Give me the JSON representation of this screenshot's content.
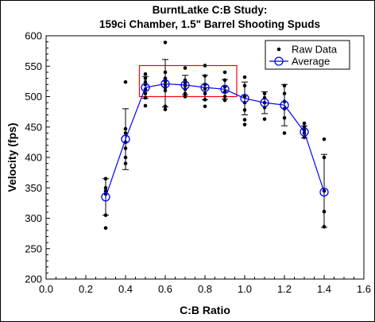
{
  "chart_data": {
    "type": "scatter",
    "title": "BurntLatke C:B Study:",
    "subtitle": "159ci Chamber, 1.5\" Barrel Shooting Spuds",
    "xlabel": "C:B Ratio",
    "ylabel": "Velocity (fps)",
    "xlim": [
      0.0,
      1.6
    ],
    "ylim": [
      200,
      600
    ],
    "x_ticks": [
      "0.0",
      "0.2",
      "0.4",
      "0.6",
      "0.8",
      "1.0",
      "1.2",
      "1.4",
      "1.6"
    ],
    "y_ticks": [
      "200",
      "250",
      "300",
      "350",
      "400",
      "450",
      "500",
      "550",
      "600"
    ],
    "grid": false,
    "legend_position": "top-right",
    "series": [
      {
        "name": "Raw Data",
        "color": "#000000",
        "marker": "dot",
        "points": [
          [
            0.3,
            365
          ],
          [
            0.3,
            350
          ],
          [
            0.3,
            345
          ],
          [
            0.3,
            340
          ],
          [
            0.3,
            305
          ],
          [
            0.3,
            284
          ],
          [
            0.4,
            524
          ],
          [
            0.4,
            447
          ],
          [
            0.4,
            440
          ],
          [
            0.4,
            425
          ],
          [
            0.4,
            415
          ],
          [
            0.4,
            400
          ],
          [
            0.4,
            390
          ],
          [
            0.5,
            537
          ],
          [
            0.5,
            530
          ],
          [
            0.5,
            524
          ],
          [
            0.5,
            520
          ],
          [
            0.5,
            512
          ],
          [
            0.5,
            505
          ],
          [
            0.5,
            498
          ],
          [
            0.5,
            485
          ],
          [
            0.6,
            589
          ],
          [
            0.6,
            540
          ],
          [
            0.6,
            530
          ],
          [
            0.6,
            525
          ],
          [
            0.6,
            520
          ],
          [
            0.6,
            515
          ],
          [
            0.6,
            510
          ],
          [
            0.6,
            484
          ],
          [
            0.6,
            479
          ],
          [
            0.7,
            547
          ],
          [
            0.7,
            527
          ],
          [
            0.7,
            522
          ],
          [
            0.7,
            518
          ],
          [
            0.7,
            512
          ],
          [
            0.7,
            505
          ],
          [
            0.7,
            500
          ],
          [
            0.8,
            551
          ],
          [
            0.8,
            534
          ],
          [
            0.8,
            520
          ],
          [
            0.8,
            513
          ],
          [
            0.8,
            505
          ],
          [
            0.8,
            495
          ],
          [
            0.8,
            484
          ],
          [
            0.9,
            540
          ],
          [
            0.9,
            527
          ],
          [
            0.9,
            516
          ],
          [
            0.9,
            508
          ],
          [
            0.9,
            500
          ],
          [
            0.9,
            494
          ],
          [
            1.0,
            532
          ],
          [
            1.0,
            518
          ],
          [
            1.0,
            500
          ],
          [
            1.0,
            490
          ],
          [
            1.0,
            478
          ],
          [
            1.0,
            462
          ],
          [
            1.0,
            454
          ],
          [
            1.1,
            505
          ],
          [
            1.1,
            498
          ],
          [
            1.1,
            490
          ],
          [
            1.1,
            482
          ],
          [
            1.1,
            463
          ],
          [
            1.2,
            518
          ],
          [
            1.2,
            505
          ],
          [
            1.2,
            492
          ],
          [
            1.2,
            480
          ],
          [
            1.2,
            465
          ],
          [
            1.2,
            440
          ],
          [
            1.3,
            456
          ],
          [
            1.3,
            450
          ],
          [
            1.3,
            445
          ],
          [
            1.3,
            440
          ],
          [
            1.3,
            433
          ],
          [
            1.4,
            430
          ],
          [
            1.4,
            400
          ],
          [
            1.4,
            345
          ],
          [
            1.4,
            311
          ],
          [
            1.4,
            286
          ]
        ]
      },
      {
        "name": "Average",
        "color": "#0000ff",
        "marker": "open-circle",
        "x": [
          0.3,
          0.4,
          0.5,
          0.6,
          0.7,
          0.8,
          0.9,
          1.0,
          1.1,
          1.2,
          1.3,
          1.4
        ],
        "y": [
          335,
          430,
          515,
          521,
          519,
          515,
          512,
          497,
          490,
          486,
          442,
          343
        ],
        "error_low": [
          305,
          380,
          497,
          483,
          503,
          495,
          496,
          470,
          472,
          452,
          432,
          285
        ],
        "error_high": [
          365,
          480,
          533,
          561,
          535,
          535,
          528,
          524,
          508,
          520,
          452,
          405
        ]
      }
    ],
    "annotations": [
      {
        "type": "rectangle",
        "color": "#ff0000",
        "x_range": [
          0.47,
          0.96
        ],
        "y_range": [
          500,
          551
        ]
      }
    ]
  }
}
